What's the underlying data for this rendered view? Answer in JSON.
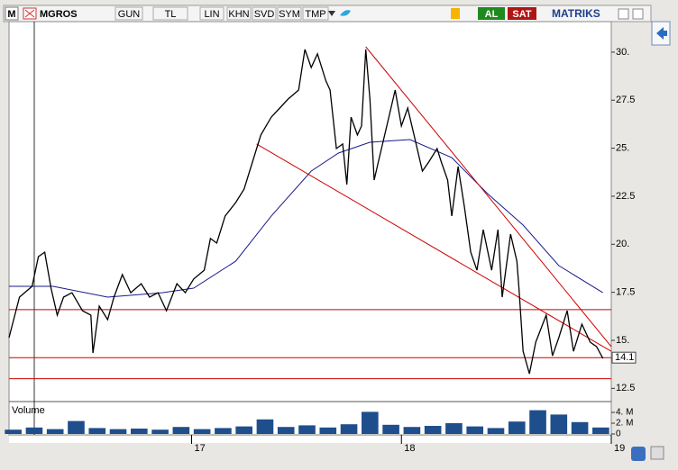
{
  "toolbar": {
    "symbol_box": "M",
    "symbol": "MGROS",
    "buttons": [
      "GUN",
      "TL",
      "LIN",
      "KHN",
      "SVD",
      "SYM",
      "TMP"
    ],
    "buy": "AL",
    "sell": "SAT",
    "brand": "MATRIKS"
  },
  "chart_data": {
    "type": "line",
    "color": "#000000",
    "x": [
      16.13,
      16.18,
      16.24,
      16.27,
      16.3,
      16.33,
      16.36,
      16.39,
      16.43,
      16.48,
      16.52,
      16.53,
      16.56,
      16.6,
      16.63,
      16.67,
      16.71,
      16.76,
      16.8,
      16.84,
      16.88,
      16.93,
      16.97,
      17.01,
      17.06,
      17.09,
      17.12,
      17.16,
      17.21,
      17.25,
      17.29,
      17.33,
      17.38,
      17.42,
      17.46,
      17.51,
      17.54,
      17.57,
      17.6,
      17.64,
      17.66,
      17.69,
      17.72,
      17.74,
      17.76,
      17.79,
      17.81,
      17.83,
      17.85,
      17.87,
      17.89,
      17.94,
      17.97,
      18.0,
      18.03,
      18.06,
      18.1,
      18.13,
      18.17,
      18.19,
      18.22,
      18.24,
      18.27,
      18.3,
      18.33,
      18.36,
      18.39,
      18.43,
      18.46,
      18.48,
      18.52,
      18.55,
      18.56,
      18.58,
      18.61,
      18.64,
      18.69,
      18.72,
      18.75,
      18.79,
      18.82,
      18.86,
      18.9,
      18.93,
      18.96
    ],
    "values": [
      15.14,
      17.25,
      17.81,
      19.36,
      19.59,
      17.72,
      16.31,
      17.25,
      17.48,
      16.54,
      16.31,
      14.34,
      16.78,
      16.08,
      17.25,
      18.42,
      17.48,
      17.95,
      17.25,
      17.48,
      16.54,
      17.95,
      17.48,
      18.19,
      18.65,
      20.3,
      20.06,
      21.47,
      22.17,
      22.87,
      24.28,
      25.69,
      26.62,
      27.09,
      27.56,
      28.03,
      30.14,
      29.2,
      29.91,
      28.5,
      28.03,
      24.98,
      25.22,
      23.11,
      26.62,
      25.69,
      26.16,
      30.14,
      27.56,
      23.34,
      24.28,
      26.62,
      28.03,
      26.16,
      27.09,
      25.69,
      23.81,
      24.28,
      24.98,
      24.28,
      23.34,
      21.47,
      24.05,
      21.94,
      19.59,
      18.65,
      20.76,
      18.65,
      20.76,
      17.25,
      20.53,
      19.12,
      17.72,
      14.43,
      13.26,
      14.9,
      16.31,
      14.2,
      15.14,
      16.54,
      14.43,
      15.84,
      14.9,
      14.67,
      14.06
    ],
    "moving_average": {
      "color": "#1a1a8c",
      "x": [
        16.13,
        16.34,
        16.6,
        16.86,
        17.01,
        17.21,
        17.38,
        17.57,
        17.7,
        17.85,
        18.04,
        18.24,
        18.41,
        18.58,
        18.75,
        18.96
      ],
      "values": [
        17.81,
        17.81,
        17.25,
        17.48,
        17.72,
        19.12,
        21.47,
        23.81,
        24.75,
        25.31,
        25.45,
        24.51,
        22.64,
        21.0,
        18.89,
        17.48
      ]
    },
    "trendlines": {
      "color": "#cc0000",
      "lines": [
        {
          "x": [
            17.31,
            19.0
          ],
          "y": [
            25.22,
            14.43
          ]
        },
        {
          "x": [
            17.83,
            19.0
          ],
          "y": [
            30.28,
            14.67
          ]
        }
      ]
    },
    "hlines": [
      16.6,
      14.1,
      13.0
    ],
    "xlim": [
      16.13,
      19.0
    ],
    "xticks": [
      17,
      18,
      19
    ],
    "ylim": [
      11.86,
      31.59
    ],
    "yticks": [
      {
        "value": 30,
        "label": "30."
      },
      27.5,
      {
        "value": 25,
        "label": "25."
      },
      22.5,
      {
        "value": 20,
        "label": "20."
      },
      17.5,
      {
        "value": 15,
        "label": "15."
      },
      12.5
    ],
    "volume": {
      "label": "Volume",
      "color": "#1f4e8c",
      "x": [
        16.15,
        16.25,
        16.35,
        16.45,
        16.55,
        16.65,
        16.75,
        16.85,
        16.95,
        17.05,
        17.15,
        17.25,
        17.35,
        17.45,
        17.55,
        17.65,
        17.75,
        17.85,
        17.95,
        18.05,
        18.15,
        18.25,
        18.35,
        18.45,
        18.55,
        18.65,
        18.75,
        18.85,
        18.95
      ],
      "values": [
        800000,
        1200000,
        900000,
        2400000,
        1100000,
        900000,
        1000000,
        800000,
        1300000,
        900000,
        1100000,
        1400000,
        2700000,
        1300000,
        1600000,
        1200000,
        1800000,
        4100000,
        1700000,
        1300000,
        1500000,
        2000000,
        1400000,
        1100000,
        2300000,
        4400000,
        3600000,
        2200000,
        1200000
      ],
      "ylim": [
        0,
        6000000
      ],
      "yticks": [
        {
          "value": 4000000,
          "label": "4. M"
        },
        {
          "value": 2000000,
          "label": "2. M"
        },
        0
      ]
    }
  }
}
